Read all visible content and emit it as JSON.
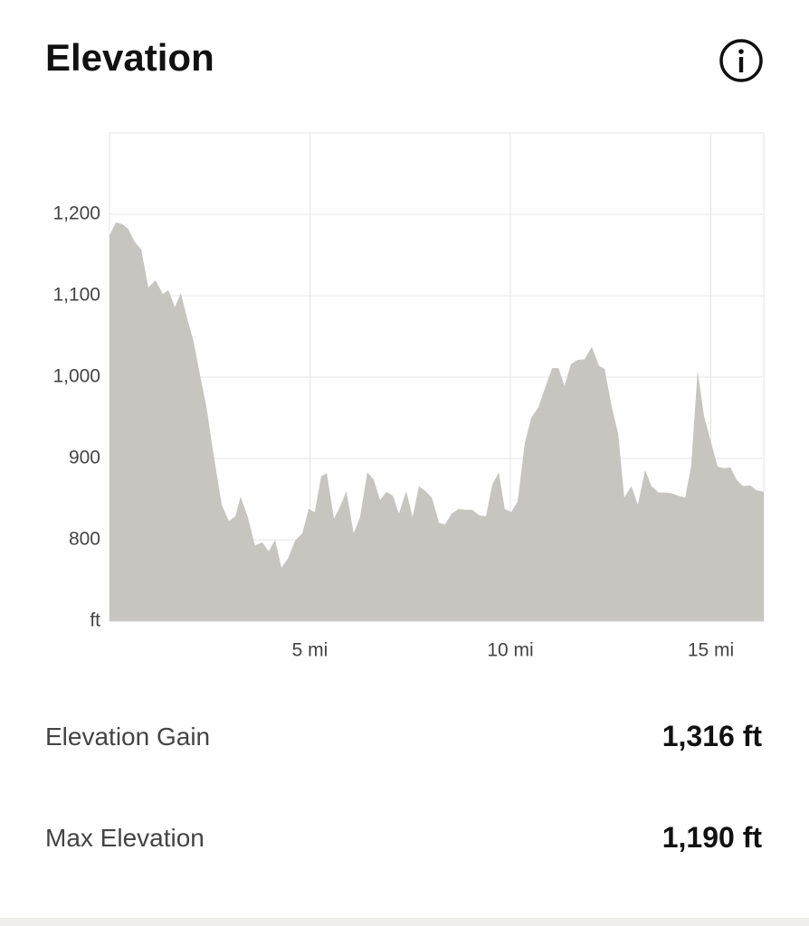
{
  "header": {
    "title": "Elevation"
  },
  "chart_data": {
    "type": "area",
    "color": "#c6c5c0",
    "x": [
      0,
      0.16,
      0.32,
      0.47,
      0.63,
      0.79,
      0.97,
      1.15,
      1.33,
      1.47,
      1.63,
      1.78,
      1.94,
      2.1,
      2.26,
      2.42,
      2.57,
      2.8,
      2.98,
      3.14,
      3.27,
      3.45,
      3.63,
      3.81,
      3.97,
      4.13,
      4.29,
      4.45,
      4.63,
      4.81,
      4.97,
      5.12,
      5.28,
      5.42,
      5.6,
      5.76,
      5.91,
      6.09,
      6.25,
      6.43,
      6.59,
      6.75,
      6.91,
      7.07,
      7.22,
      7.4,
      7.56,
      7.72,
      7.88,
      8.04,
      8.22,
      8.37,
      8.53,
      8.71,
      8.87,
      9.05,
      9.23,
      9.39,
      9.55,
      9.71,
      9.86,
      10.02,
      10.18,
      10.36,
      10.52,
      10.7,
      10.86,
      11.04,
      11.2,
      11.35,
      11.51,
      11.67,
      11.85,
      12.03,
      12.21,
      12.35,
      12.53,
      12.69,
      12.84,
      13.02,
      13.18,
      13.36,
      13.52,
      13.7,
      13.88,
      14.04,
      14.2,
      14.36,
      14.51,
      14.67,
      14.83,
      15.01,
      15.17,
      15.33,
      15.49,
      15.64,
      15.8,
      15.98,
      16.14,
      16.32
    ],
    "values": [
      1174,
      1190,
      1188,
      1182,
      1166,
      1157,
      1110,
      1119,
      1102,
      1107,
      1086,
      1103,
      1072,
      1043,
      1002,
      963,
      913,
      843,
      823,
      829,
      853,
      828,
      793,
      797,
      786,
      800,
      766,
      777,
      799,
      808,
      838,
      834,
      878,
      882,
      826,
      842,
      860,
      808,
      828,
      883,
      874,
      849,
      859,
      854,
      832,
      860,
      828,
      866,
      860,
      852,
      821,
      819,
      832,
      838,
      837,
      837,
      830,
      829,
      868,
      883,
      838,
      834,
      847,
      919,
      950,
      963,
      986,
      1011,
      1011,
      989,
      1016,
      1021,
      1022,
      1037,
      1014,
      1010,
      963,
      930,
      852,
      866,
      843,
      886,
      866,
      858,
      858,
      857,
      854,
      852,
      891,
      1008,
      952,
      919,
      890,
      888,
      889,
      874,
      866,
      867,
      861,
      859
    ],
    "xlim": [
      0,
      16.32
    ],
    "ylim": [
      700,
      1300
    ],
    "xticks": [
      {
        "value": 5,
        "label": "5 mi"
      },
      {
        "value": 10,
        "label": "10 mi"
      },
      {
        "value": 15,
        "label": "15 mi"
      }
    ],
    "yticks": [
      {
        "value": 700,
        "label": "ft"
      },
      {
        "value": 800,
        "label": "800"
      },
      {
        "value": 900,
        "label": "900"
      },
      {
        "value": 1000,
        "label": "1,000"
      },
      {
        "value": 1100,
        "label": "1,100"
      },
      {
        "value": 1200,
        "label": "1,200"
      }
    ],
    "grid": true
  },
  "stats": [
    {
      "label": "Elevation Gain",
      "value": "1,316 ft"
    },
    {
      "label": "Max Elevation",
      "value": "1,190 ft"
    }
  ]
}
